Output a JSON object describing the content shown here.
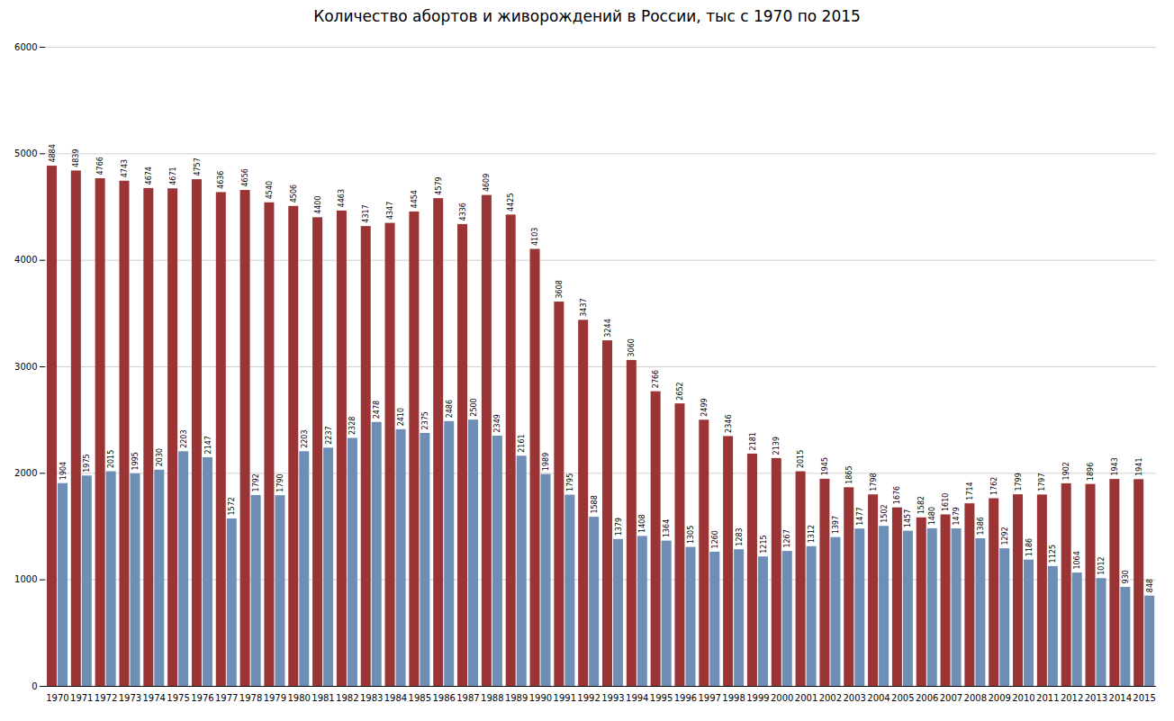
{
  "chart_data": {
    "type": "bar",
    "title": "Количество абортов и живорождений в России, тыс с 1970 по 2015",
    "categories": [
      "1970",
      "1971",
      "1972",
      "1973",
      "1974",
      "1975",
      "1976",
      "1977",
      "1978",
      "1979",
      "1980",
      "1981",
      "1982",
      "1983",
      "1984",
      "1985",
      "1986",
      "1987",
      "1988",
      "1989",
      "1990",
      "1991",
      "1992",
      "1993",
      "1994",
      "1995",
      "1996",
      "1997",
      "1998",
      "1999",
      "2000",
      "2001",
      "2002",
      "2003",
      "2004",
      "2005",
      "2006",
      "2007",
      "2008",
      "2009",
      "2010",
      "2011",
      "2012",
      "2013",
      "2014",
      "2015"
    ],
    "series": [
      {
        "color": "#9b3535",
        "values": [
          4884,
          4839,
          4766,
          4743,
          4674,
          4671,
          4757,
          4636,
          4656,
          4540,
          4506,
          4400,
          4463,
          4317,
          4347,
          4454,
          4579,
          4336,
          4609,
          4425,
          4103,
          3608,
          3437,
          3244,
          3060,
          2766,
          2652,
          2499,
          2346,
          2181,
          2139,
          2015,
          1945,
          1865,
          1798,
          1676,
          1582,
          1610,
          1714,
          1762,
          1799,
          1797,
          1902,
          1896,
          1943,
          1941
        ]
      },
      {
        "color": "#6e8eb5",
        "values": [
          1904,
          1975,
          2015,
          1995,
          2030,
          2203,
          2147,
          1572,
          1792,
          1790,
          2203,
          2237,
          2328,
          2478,
          2410,
          2375,
          2486,
          2500,
          2349,
          2161,
          1989,
          1795,
          1588,
          1379,
          1408,
          1364,
          1305,
          1260,
          1283,
          1215,
          1267,
          1312,
          1397,
          1477,
          1502,
          1457,
          1480,
          1479,
          1386,
          1292,
          1186,
          1125,
          1064,
          1012,
          930,
          848
        ]
      }
    ],
    "ylim": [
      0,
      6000
    ],
    "yticks": [
      0,
      1000,
      2000,
      3000,
      4000,
      5000,
      6000
    ],
    "grid": true,
    "data_labels": true
  }
}
